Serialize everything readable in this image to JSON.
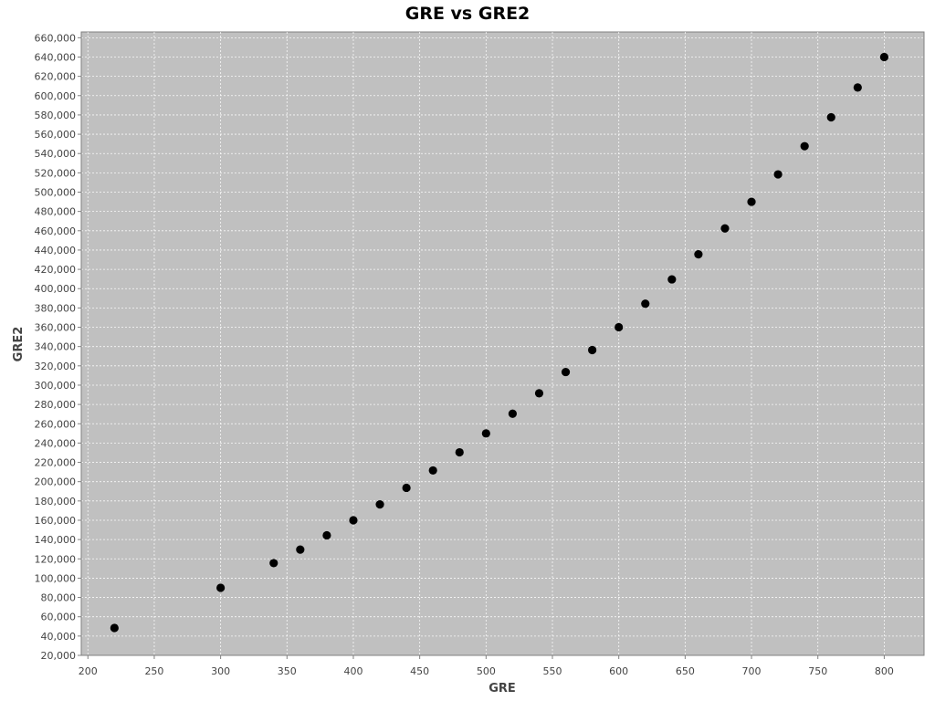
{
  "chart_data": {
    "type": "scatter",
    "title": "GRE vs GRE2",
    "xlabel": "GRE",
    "ylabel": "GRE2",
    "xlim": [
      195,
      830
    ],
    "ylim": [
      20000,
      666000
    ],
    "x_ticks": [
      200,
      250,
      300,
      350,
      400,
      450,
      500,
      550,
      600,
      650,
      700,
      750,
      800
    ],
    "x_tick_labels": [
      "200",
      "250",
      "300",
      "350",
      "400",
      "450",
      "500",
      "550",
      "600",
      "650",
      "700",
      "750",
      "800"
    ],
    "y_ticks": [
      20000,
      40000,
      60000,
      80000,
      100000,
      120000,
      140000,
      160000,
      180000,
      200000,
      220000,
      240000,
      260000,
      280000,
      300000,
      320000,
      340000,
      360000,
      380000,
      400000,
      420000,
      440000,
      460000,
      480000,
      500000,
      520000,
      540000,
      560000,
      580000,
      600000,
      620000,
      640000,
      660000
    ],
    "y_tick_labels": [
      "20,000",
      "40,000",
      "60,000",
      "80,000",
      "100,000",
      "120,000",
      "140,000",
      "160,000",
      "180,000",
      "200,000",
      "220,000",
      "240,000",
      "260,000",
      "280,000",
      "300,000",
      "320,000",
      "340,000",
      "360,000",
      "380,000",
      "400,000",
      "420,000",
      "440,000",
      "460,000",
      "480,000",
      "500,000",
      "520,000",
      "540,000",
      "560,000",
      "580,000",
      "600,000",
      "620,000",
      "640,000",
      "660,000"
    ],
    "grid": true,
    "legend": false,
    "colors": {
      "plot_background": "#c0c0c0",
      "point": "#000000",
      "grid": "#ffffff"
    },
    "series": [
      {
        "points": [
          {
            "x": 220,
            "y": 48400
          },
          {
            "x": 300,
            "y": 90000
          },
          {
            "x": 340,
            "y": 115600
          },
          {
            "x": 360,
            "y": 129600
          },
          {
            "x": 380,
            "y": 144400
          },
          {
            "x": 400,
            "y": 160000
          },
          {
            "x": 420,
            "y": 176400
          },
          {
            "x": 440,
            "y": 193600
          },
          {
            "x": 460,
            "y": 211600
          },
          {
            "x": 480,
            "y": 230400
          },
          {
            "x": 500,
            "y": 250000
          },
          {
            "x": 520,
            "y": 270400
          },
          {
            "x": 540,
            "y": 291600
          },
          {
            "x": 560,
            "y": 313600
          },
          {
            "x": 580,
            "y": 336400
          },
          {
            "x": 600,
            "y": 360000
          },
          {
            "x": 620,
            "y": 384400
          },
          {
            "x": 640,
            "y": 409600
          },
          {
            "x": 660,
            "y": 435600
          },
          {
            "x": 680,
            "y": 462400
          },
          {
            "x": 700,
            "y": 490000
          },
          {
            "x": 720,
            "y": 518400
          },
          {
            "x": 740,
            "y": 547600
          },
          {
            "x": 760,
            "y": 577600
          },
          {
            "x": 780,
            "y": 608400
          },
          {
            "x": 800,
            "y": 640000
          }
        ]
      }
    ]
  }
}
